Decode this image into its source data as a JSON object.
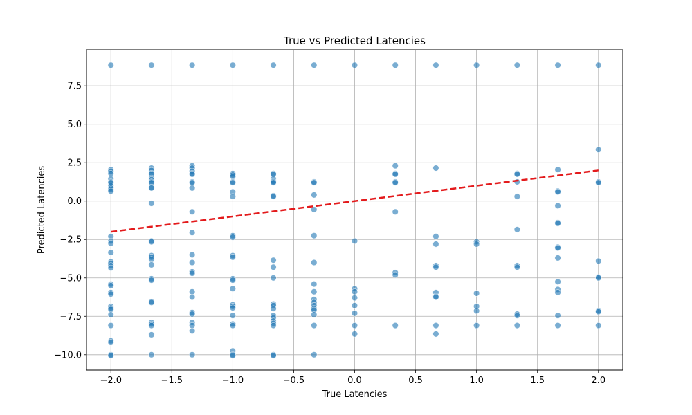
{
  "chart_data": {
    "type": "scatter",
    "title": "True vs Predicted Latencies",
    "xlabel": "True Latencies",
    "ylabel": "Predicted Latencies",
    "xlim": [
      -2.2,
      2.2
    ],
    "ylim": [
      -11.0,
      9.85
    ],
    "x_ticks": [
      -2.0,
      -1.5,
      -1.0,
      -0.5,
      0.0,
      0.5,
      1.0,
      1.5,
      2.0
    ],
    "x_tick_labels": [
      "−2.0",
      "−1.5",
      "−1.0",
      "−0.5",
      "0.0",
      "0.5",
      "1.0",
      "1.5",
      "2.0"
    ],
    "y_ticks": [
      -10.0,
      -7.5,
      -5.0,
      -2.5,
      0.0,
      2.5,
      5.0,
      7.5
    ],
    "y_tick_labels": [
      "−10.0",
      "−7.5",
      "−5.0",
      "−2.5",
      "0.0",
      "2.5",
      "5.0",
      "7.5"
    ],
    "grid": true,
    "point_color": "#1f77b4",
    "point_opacity": 0.6,
    "reference_line": {
      "x": [
        -2.0,
        2.0
      ],
      "y": [
        -2.0,
        2.0
      ],
      "color": "#e31a1c",
      "style": "dashed"
    },
    "series_points": [
      [
        -2.0,
        [
          8.85,
          2.05,
          1.95,
          1.8,
          1.45,
          1.25,
          1.2,
          1.0,
          0.85,
          0.75,
          0.65,
          -2.3,
          -2.6,
          -2.75,
          -3.35,
          -3.95,
          -4.05,
          -4.2,
          -4.35,
          -5.4,
          -5.5,
          -5.95,
          -6.05,
          -6.85,
          -6.95,
          -7.05,
          -7.4,
          -8.1,
          -9.1,
          -9.2,
          -10.0,
          -10.05
        ]
      ],
      [
        -1.6667,
        [
          8.85,
          2.15,
          2.0,
          1.8,
          1.75,
          1.5,
          1.4,
          1.25,
          1.2,
          0.9,
          0.85,
          -0.15,
          -2.6,
          -2.65,
          -3.55,
          -3.65,
          -3.8,
          -4.15,
          -5.05,
          -5.15,
          -6.55,
          -6.6,
          -7.9,
          -8.0,
          -8.1,
          -8.7,
          -10.0
        ]
      ],
      [
        -1.3333,
        [
          8.85,
          2.3,
          2.15,
          1.95,
          1.8,
          1.75,
          1.25,
          1.2,
          0.85,
          -0.7,
          -2.05,
          -3.5,
          -4.0,
          -4.6,
          -4.7,
          -5.9,
          -6.25,
          -7.25,
          -7.35,
          -7.9,
          -8.1,
          -8.45,
          -10.0
        ]
      ],
      [
        -1.0,
        [
          8.85,
          1.8,
          1.7,
          1.6,
          1.25,
          1.2,
          0.6,
          0.3,
          -2.25,
          -2.35,
          -3.55,
          -3.65,
          -5.05,
          -5.15,
          -5.7,
          -6.75,
          -6.85,
          -6.95,
          -7.45,
          -8.0,
          -8.1,
          -9.75,
          -10.0,
          -10.05
        ]
      ],
      [
        -0.6667,
        [
          8.85,
          1.8,
          1.75,
          1.45,
          1.3,
          1.25,
          1.2,
          0.35,
          0.3,
          -3.85,
          -4.3,
          -5.0,
          -6.7,
          -6.8,
          -7.0,
          -7.45,
          -7.6,
          -7.8,
          -7.95,
          -8.1,
          -10.0,
          -10.05
        ]
      ],
      [
        -0.3333,
        [
          8.85,
          1.25,
          1.2,
          0.4,
          -0.55,
          -2.25,
          -4.0,
          -5.4,
          -5.9,
          -6.4,
          -6.6,
          -6.8,
          -7.0,
          -7.1,
          -7.4,
          -8.1,
          -10.0
        ]
      ],
      [
        0.0,
        [
          8.85,
          -2.6,
          -5.7,
          -5.9,
          -6.3,
          -6.8,
          -7.3,
          -8.1,
          -8.65
        ]
      ],
      [
        0.3333,
        [
          8.85,
          2.3,
          1.8,
          1.75,
          1.25,
          1.2,
          -0.7,
          -4.65,
          -4.8,
          -8.1
        ]
      ],
      [
        0.6667,
        [
          8.85,
          2.15,
          -2.3,
          -2.8,
          -4.2,
          -4.3,
          -5.95,
          -6.2,
          -6.25,
          -8.1,
          -8.65
        ]
      ],
      [
        1.0,
        [
          8.85,
          -2.65,
          -2.8,
          -6.0,
          -6.85,
          -7.15,
          -8.1
        ]
      ],
      [
        1.3333,
        [
          8.85,
          1.8,
          1.75,
          1.25,
          0.3,
          -1.85,
          -4.2,
          -4.3,
          -7.35,
          -7.45,
          -8.1
        ]
      ],
      [
        1.6667,
        [
          8.85,
          2.05,
          0.65,
          0.6,
          -0.3,
          -1.4,
          -1.45,
          -3.0,
          -3.05,
          -3.7,
          -5.25,
          -5.75,
          -5.95,
          -7.45,
          -8.1
        ]
      ],
      [
        2.0,
        [
          8.85,
          3.35,
          1.25,
          1.2,
          -3.9,
          -4.95,
          -5.0,
          -7.15,
          -7.2,
          -8.1
        ]
      ]
    ]
  }
}
